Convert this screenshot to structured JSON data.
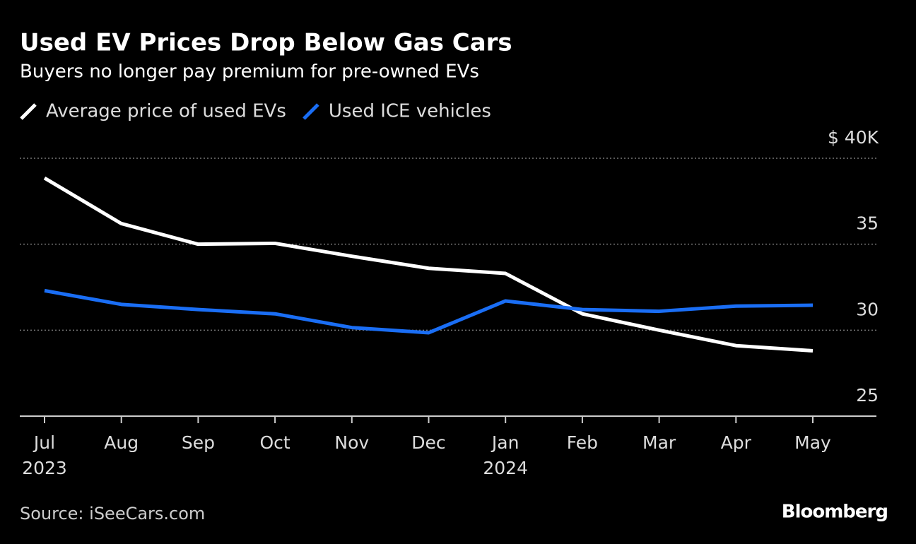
{
  "chart_data": {
    "type": "line",
    "title": "Used EV Prices Drop Below Gas Cars",
    "subtitle": "Buyers no longer pay premium for pre-owned EVs",
    "categories": [
      "Jul",
      "Aug",
      "Sep",
      "Oct",
      "Nov",
      "Dec",
      "Jan",
      "Feb",
      "Mar",
      "Apr",
      "May"
    ],
    "category_years": [
      "2023",
      null,
      null,
      null,
      null,
      null,
      "2024",
      null,
      null,
      null,
      null
    ],
    "series": [
      {
        "name": "Average price of used EVs",
        "color": "#ffffff",
        "values": [
          38.85,
          36.2,
          35.0,
          35.05,
          34.3,
          33.6,
          33.3,
          30.95,
          30.0,
          29.1,
          28.8
        ]
      },
      {
        "name": "Used ICE vehicles",
        "color": "#1a6ef5",
        "values": [
          32.3,
          31.5,
          31.2,
          30.95,
          30.15,
          29.85,
          31.7,
          31.2,
          31.1,
          31.4,
          31.45
        ]
      }
    ],
    "ylim": [
      25,
      40
    ],
    "yticks": [
      25,
      30,
      35,
      {
        "value": 40,
        "label": "$ 40K"
      }
    ],
    "grid": true,
    "source": "Source: iSeeCars.com",
    "brand": "Bloomberg"
  }
}
